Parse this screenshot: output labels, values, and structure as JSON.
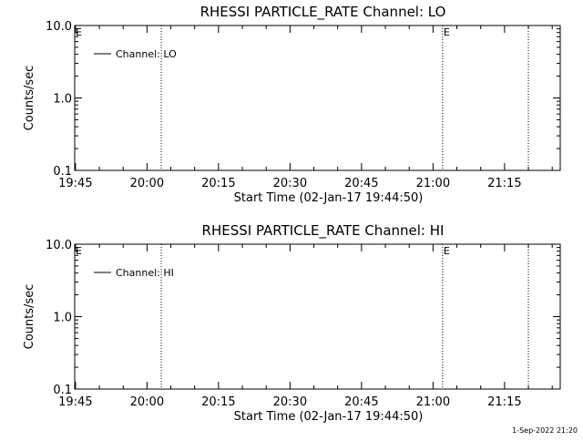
{
  "footer": {
    "timestamp": "1-Sep-2022 21:20"
  },
  "chart_data": [
    {
      "type": "line",
      "title": "RHESSI PARTICLE_RATE Channel: LO",
      "xlabel": "Start Time (02-Jan-17 19:44:50)",
      "ylabel": "Counts/sec",
      "y_scale": "log",
      "ylim": [
        0.1,
        10.0
      ],
      "y_ticks": [
        "10.0",
        "1.0",
        "0.1"
      ],
      "x_ticks": [
        "19:45",
        "20:00",
        "20:15",
        "20:30",
        "20:45",
        "21:00",
        "21:15"
      ],
      "series": [
        {
          "name": "Channel: LO",
          "values": []
        }
      ],
      "vertical_markers": [
        {
          "time": "20:03",
          "label": ""
        },
        {
          "time": "21:02",
          "label": "E"
        },
        {
          "time": "21:20",
          "label": ""
        }
      ],
      "left_edge_label": "E",
      "legend_position": "top-left",
      "grid": false
    },
    {
      "type": "line",
      "title": "RHESSI PARTICLE_RATE Channel: HI",
      "xlabel": "Start Time (02-Jan-17 19:44:50)",
      "ylabel": "Counts/sec",
      "y_scale": "log",
      "ylim": [
        0.1,
        10.0
      ],
      "y_ticks": [
        "10.0",
        "1.0",
        "0.1"
      ],
      "x_ticks": [
        "19:45",
        "20:00",
        "20:15",
        "20:30",
        "20:45",
        "21:00",
        "21:15"
      ],
      "series": [
        {
          "name": "Channel: HI",
          "values": []
        }
      ],
      "vertical_markers": [
        {
          "time": "20:03",
          "label": ""
        },
        {
          "time": "21:02",
          "label": "E"
        },
        {
          "time": "21:20",
          "label": ""
        }
      ],
      "left_edge_label": "E",
      "legend_position": "top-left",
      "grid": false
    }
  ]
}
